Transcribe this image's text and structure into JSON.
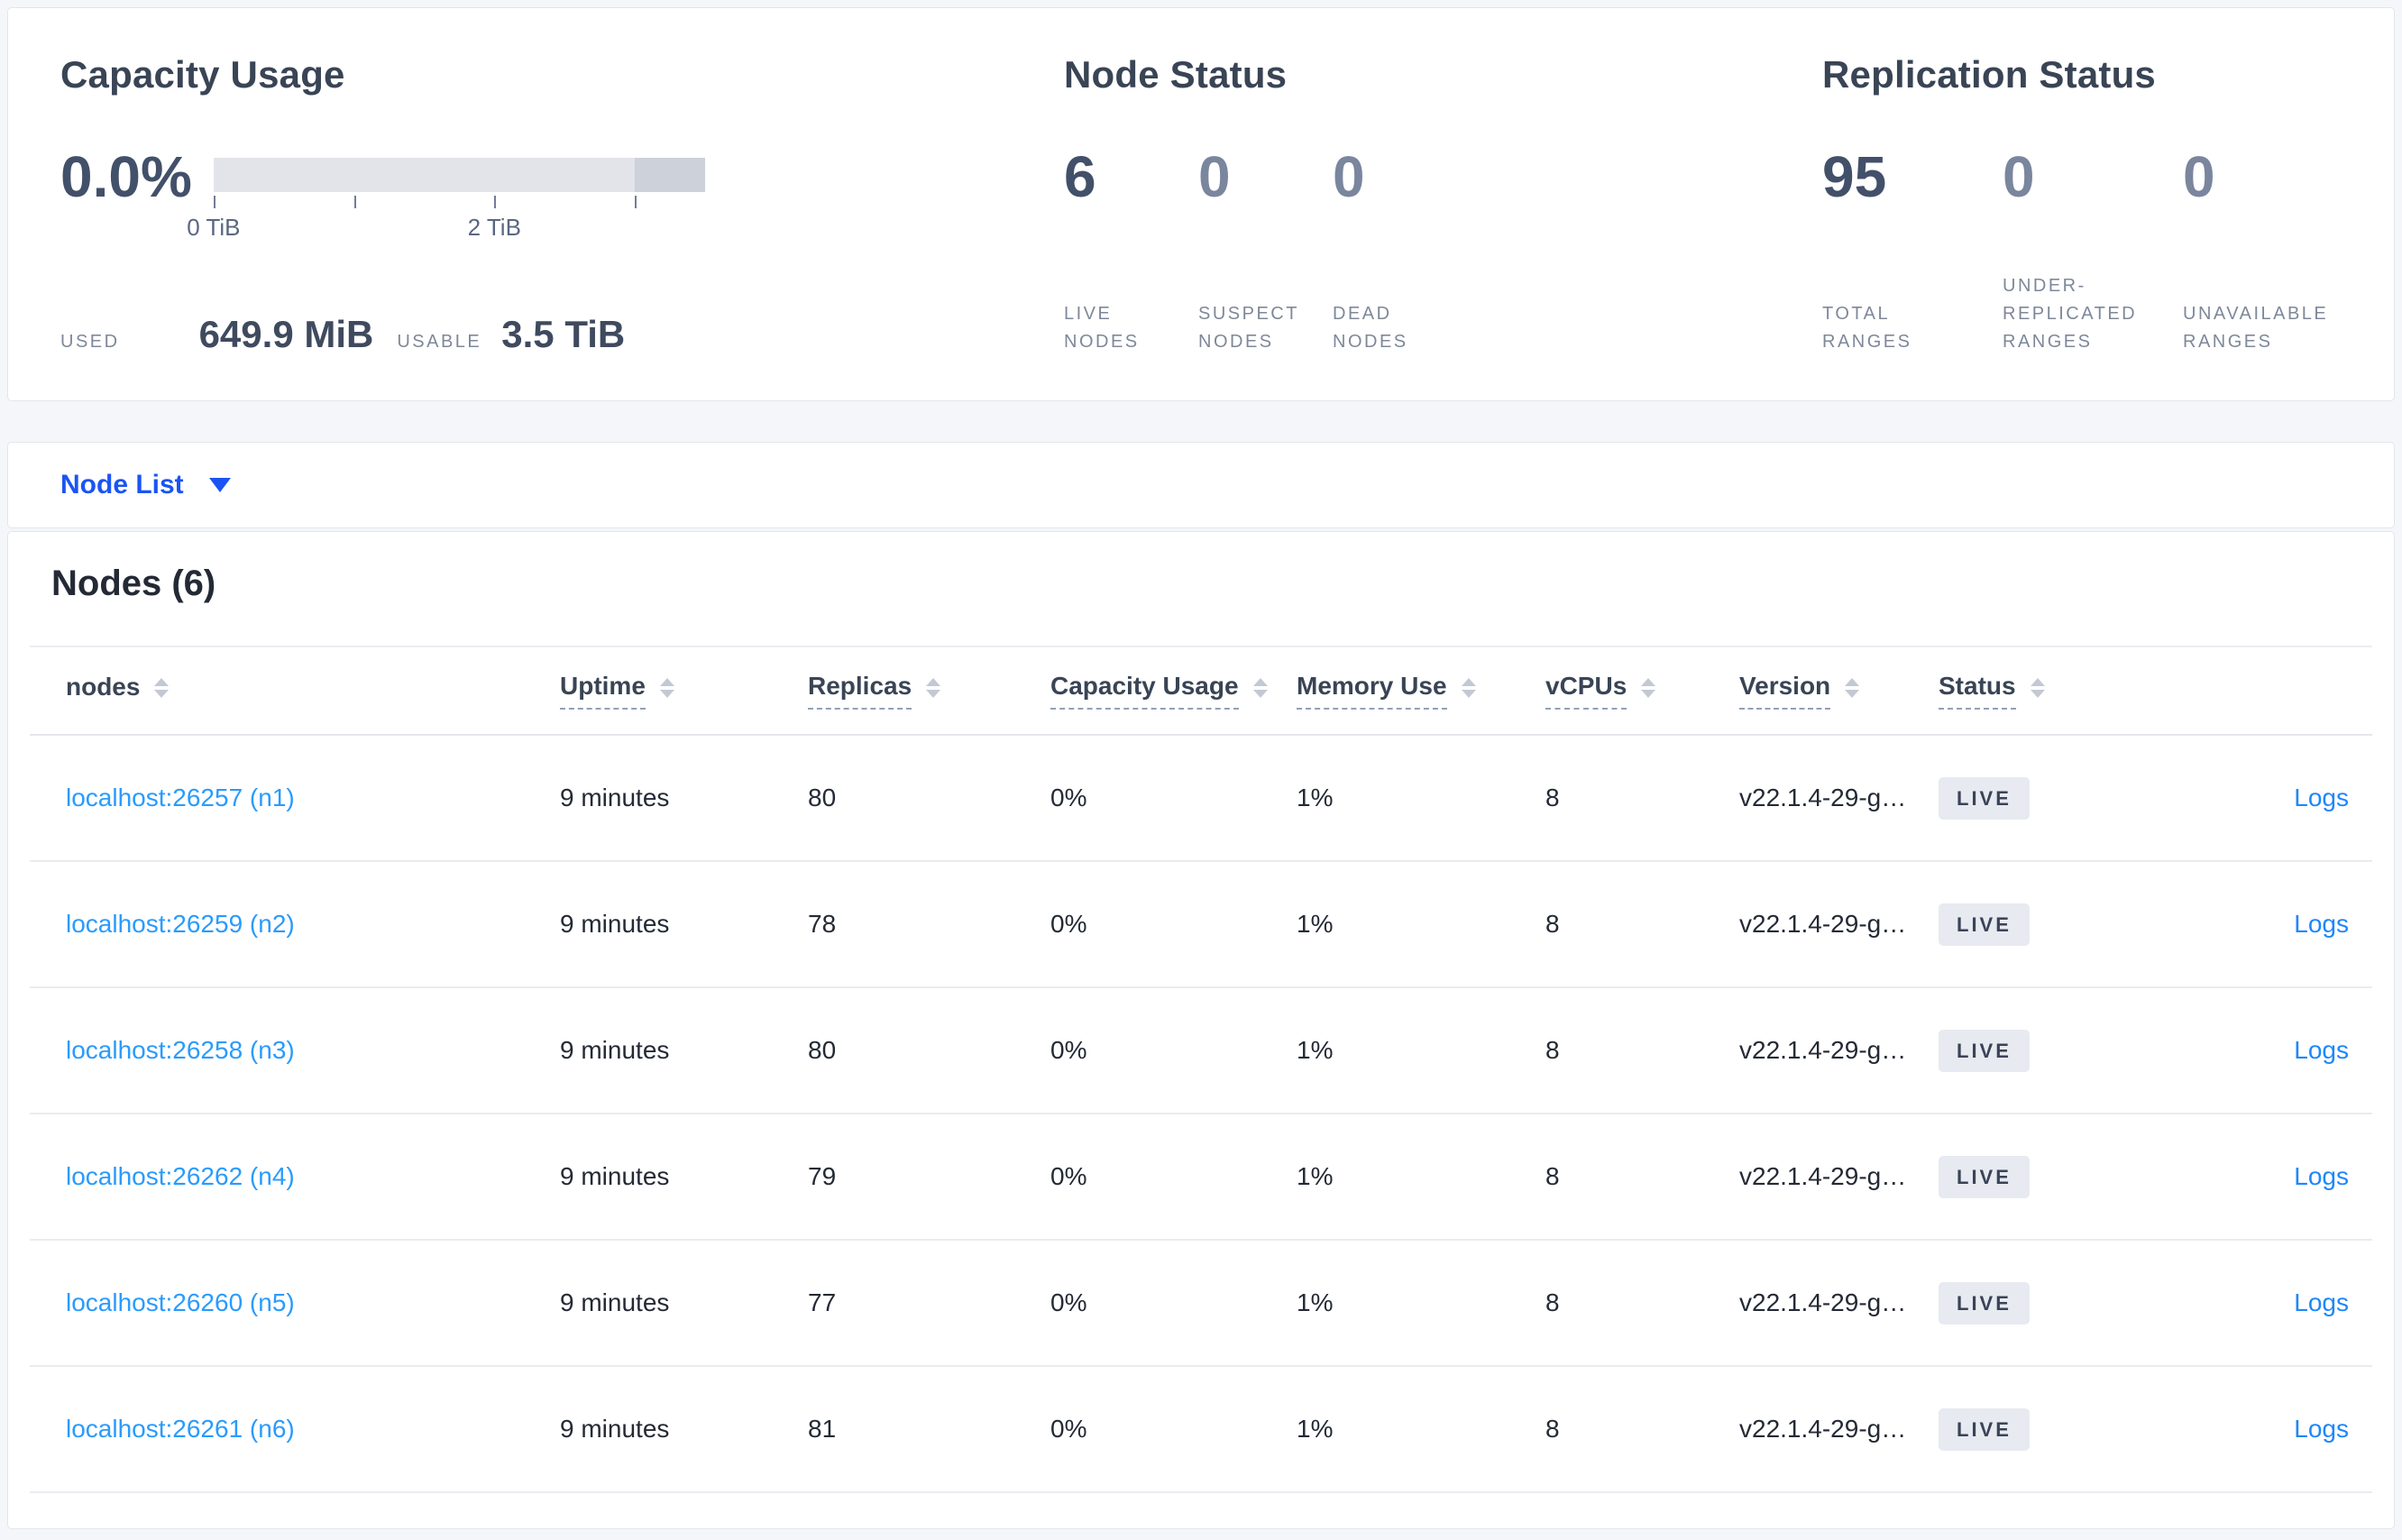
{
  "stats_panel": {
    "capacity": {
      "title": "Capacity Usage",
      "percent": "0.0%",
      "used_label": "USED",
      "used_value": "649.9 MiB",
      "usable_label": "USABLE",
      "usable_value": "3.5 TiB",
      "chart_data": {
        "type": "bar",
        "title": "Capacity Usage gauge",
        "used_fraction": 0.0,
        "usable_total": "3.5 TiB",
        "axis_unit": "TiB",
        "ticks": [
          {
            "pos_percent": 0,
            "label": "0 TiB"
          },
          {
            "pos_percent": 28.57,
            "label": ""
          },
          {
            "pos_percent": 57.14,
            "label": "2 TiB"
          },
          {
            "pos_percent": 85.71,
            "label": ""
          }
        ],
        "bar_color": "#e2e4ea",
        "segment_color": "#cdd1da",
        "segment_start_percent": 85.7
      }
    },
    "node_status": {
      "title": "Node Status",
      "items": [
        {
          "value": "6",
          "label": "LIVE NODES",
          "emphasized": true
        },
        {
          "value": "0",
          "label": "SUSPECT NODES",
          "emphasized": false
        },
        {
          "value": "0",
          "label": "DEAD NODES",
          "emphasized": false
        }
      ]
    },
    "replication_status": {
      "title": "Replication Status",
      "items": [
        {
          "value": "95",
          "label": "TOTAL RANGES",
          "emphasized": true
        },
        {
          "value": "0",
          "label": "UNDER-REPLICATED RANGES",
          "emphasized": false
        },
        {
          "value": "0",
          "label": "UNAVAILABLE RANGES",
          "emphasized": false
        }
      ]
    }
  },
  "view_selector": {
    "label": "Node List"
  },
  "nodes_table": {
    "title": "Nodes (6)",
    "columns": [
      {
        "label": "nodes",
        "sortable": true,
        "underlined": false
      },
      {
        "label": "Uptime",
        "sortable": true,
        "underlined": true
      },
      {
        "label": "Replicas",
        "sortable": true,
        "underlined": true
      },
      {
        "label": "Capacity Usage",
        "sortable": true,
        "underlined": true
      },
      {
        "label": "Memory Use",
        "sortable": true,
        "underlined": true
      },
      {
        "label": "vCPUs",
        "sortable": true,
        "underlined": true
      },
      {
        "label": "Version",
        "sortable": true,
        "underlined": true
      },
      {
        "label": "Status",
        "sortable": true,
        "underlined": true
      },
      {
        "label": "",
        "sortable": false,
        "underlined": false
      }
    ],
    "rows": [
      {
        "node": "localhost:26257 (n1)",
        "uptime": "9 minutes",
        "replicas": "80",
        "capacity_usage": "0%",
        "memory_use": "1%",
        "vcpus": "8",
        "version": "v22.1.4-29-g…",
        "status": "LIVE",
        "logs": "Logs"
      },
      {
        "node": "localhost:26259 (n2)",
        "uptime": "9 minutes",
        "replicas": "78",
        "capacity_usage": "0%",
        "memory_use": "1%",
        "vcpus": "8",
        "version": "v22.1.4-29-g…",
        "status": "LIVE",
        "logs": "Logs"
      },
      {
        "node": "localhost:26258 (n3)",
        "uptime": "9 minutes",
        "replicas": "80",
        "capacity_usage": "0%",
        "memory_use": "1%",
        "vcpus": "8",
        "version": "v22.1.4-29-g…",
        "status": "LIVE",
        "logs": "Logs"
      },
      {
        "node": "localhost:26262 (n4)",
        "uptime": "9 minutes",
        "replicas": "79",
        "capacity_usage": "0%",
        "memory_use": "1%",
        "vcpus": "8",
        "version": "v22.1.4-29-g…",
        "status": "LIVE",
        "logs": "Logs"
      },
      {
        "node": "localhost:26260 (n5)",
        "uptime": "9 minutes",
        "replicas": "77",
        "capacity_usage": "0%",
        "memory_use": "1%",
        "vcpus": "8",
        "version": "v22.1.4-29-g…",
        "status": "LIVE",
        "logs": "Logs"
      },
      {
        "node": "localhost:26261 (n6)",
        "uptime": "9 minutes",
        "replicas": "81",
        "capacity_usage": "0%",
        "memory_use": "1%",
        "vcpus": "8",
        "version": "v22.1.4-29-g…",
        "status": "LIVE",
        "logs": "Logs"
      }
    ]
  },
  "colors": {
    "accent_blue": "#1a54f4",
    "node_link_blue": "#2a9bfc",
    "logs_link_blue": "#1e87fa",
    "dark_number": "#42506a",
    "muted_number": "#7a869e",
    "badge_background": "#e7eaf0",
    "page_background": "#f4f6fa"
  }
}
